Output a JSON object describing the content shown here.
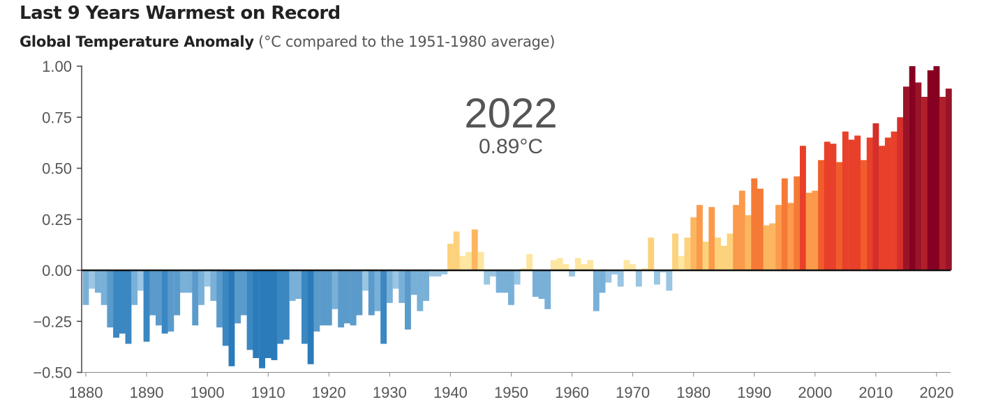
{
  "chart_data": {
    "type": "bar",
    "title": "Last 9 Years Warmest on Record",
    "subtitle_bold": "Global Temperature Anomaly",
    "subtitle_units": "(°C compared to the 1951-1980 average)",
    "xlabel": "",
    "ylabel": "",
    "ylim": [
      -0.5,
      1.0
    ],
    "xlim": [
      1880,
      2022
    ],
    "yticks": [
      "1.00",
      "0.75",
      "0.50",
      "0.25",
      "0.00",
      "−0.25",
      "−0.50"
    ],
    "ytick_values": [
      1.0,
      0.75,
      0.5,
      0.25,
      0,
      -0.25,
      -0.5
    ],
    "xticks": [
      "1880",
      "1890",
      "1900",
      "1910",
      "1920",
      "1930",
      "1940",
      "1950",
      "1960",
      "1970",
      "1980",
      "1990",
      "2000",
      "2010",
      "2020"
    ],
    "annotation": {
      "year": "2022",
      "value": "0.89°C"
    },
    "start_year": 1880,
    "values": [
      -0.17,
      -0.09,
      -0.11,
      -0.17,
      -0.28,
      -0.33,
      -0.31,
      -0.36,
      -0.17,
      -0.1,
      -0.35,
      -0.22,
      -0.27,
      -0.31,
      -0.3,
      -0.22,
      -0.11,
      -0.11,
      -0.27,
      -0.17,
      -0.08,
      -0.15,
      -0.28,
      -0.37,
      -0.47,
      -0.26,
      -0.22,
      -0.39,
      -0.43,
      -0.48,
      -0.43,
      -0.44,
      -0.36,
      -0.34,
      -0.15,
      -0.14,
      -0.36,
      -0.46,
      -0.3,
      -0.27,
      -0.27,
      -0.19,
      -0.28,
      -0.26,
      -0.27,
      -0.22,
      -0.1,
      -0.22,
      -0.2,
      -0.36,
      -0.16,
      -0.09,
      -0.16,
      -0.29,
      -0.12,
      -0.2,
      -0.15,
      -0.03,
      -0.03,
      -0.02,
      0.13,
      0.19,
      0.07,
      0.09,
      0.2,
      0.09,
      -0.07,
      -0.03,
      -0.11,
      -0.11,
      -0.17,
      -0.07,
      0.01,
      0.08,
      -0.13,
      -0.14,
      -0.19,
      0.05,
      0.06,
      0.03,
      -0.03,
      0.06,
      0.03,
      0.05,
      -0.2,
      -0.11,
      -0.06,
      -0.02,
      -0.08,
      0.05,
      0.03,
      -0.08,
      0.01,
      0.16,
      -0.07,
      -0.01,
      -0.1,
      0.18,
      0.07,
      0.16,
      0.26,
      0.32,
      0.14,
      0.31,
      0.16,
      0.12,
      0.18,
      0.32,
      0.39,
      0.27,
      0.45,
      0.4,
      0.22,
      0.23,
      0.32,
      0.45,
      0.33,
      0.46,
      0.61,
      0.38,
      0.39,
      0.54,
      0.63,
      0.62,
      0.53,
      0.68,
      0.64,
      0.66,
      0.54,
      0.65,
      0.72,
      0.61,
      0.65,
      0.68,
      0.75,
      0.9,
      1.0,
      0.92,
      0.85,
      0.98,
      1.0,
      0.85,
      0.89
    ],
    "grid": false,
    "legend": "none"
  }
}
